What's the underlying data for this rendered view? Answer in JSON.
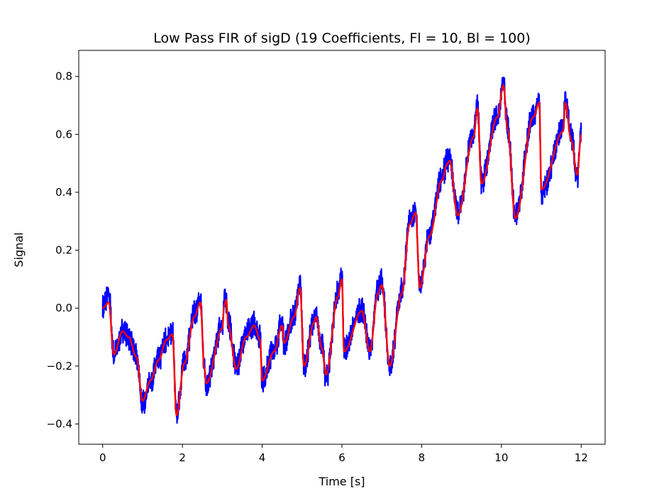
{
  "chart_data": {
    "type": "line",
    "title": "Low Pass FIR of sigD (19 Coefficients, Fl = 10, Bl = 100)",
    "xlabel": "Time [s]",
    "ylabel": "Signal",
    "xlim": [
      -0.6,
      12.6
    ],
    "ylim": [
      -0.47,
      0.89
    ],
    "xticks": [
      0,
      2,
      4,
      6,
      8,
      10,
      12
    ],
    "xtick_labels": [
      "0",
      "2",
      "4",
      "6",
      "8",
      "10",
      "12"
    ],
    "yticks": [
      -0.4,
      -0.2,
      0.0,
      0.2,
      0.4,
      0.6,
      0.8
    ],
    "ytick_labels": [
      "−0.4",
      "−0.2",
      "0.0",
      "0.2",
      "0.4",
      "0.6",
      "0.8"
    ],
    "grid": false,
    "series": [
      {
        "color": "#0000ff",
        "noise_amplitude": 0.03,
        "x": [
          0,
          0.15,
          0.28,
          0.5,
          0.65,
          0.85,
          1.0,
          1.2,
          1.4,
          1.6,
          1.75,
          1.85,
          2.05,
          2.3,
          2.45,
          2.55,
          2.6,
          3.0,
          3.05,
          3.1,
          3.15,
          3.35,
          3.6,
          3.8,
          3.95,
          4.0,
          4.3,
          4.5,
          4.55,
          4.8,
          4.95,
          5.05,
          5.3,
          5.35,
          5.5,
          5.6,
          5.9,
          6.0,
          6.05,
          6.5,
          6.7,
          6.9,
          7.0,
          7.2,
          7.5,
          7.7,
          7.85,
          7.95,
          8.2,
          8.5,
          8.65,
          8.7,
          8.9,
          9.3,
          9.4,
          9.5,
          9.9,
          10.05,
          10.15,
          10.35,
          10.8,
          10.95,
          11.0,
          11.55,
          11.6,
          11.75,
          11.9,
          12.0
        ],
        "values": [
          0.0,
          0.05,
          -0.16,
          -0.08,
          -0.1,
          -0.17,
          -0.33,
          -0.25,
          -0.18,
          -0.11,
          -0.08,
          -0.37,
          -0.18,
          -0.02,
          0.03,
          -0.2,
          -0.26,
          -0.06,
          0.02,
          0.03,
          -0.05,
          -0.2,
          -0.09,
          -0.05,
          -0.1,
          -0.25,
          -0.14,
          -0.05,
          -0.12,
          -0.02,
          0.08,
          -0.2,
          -0.04,
          -0.03,
          -0.13,
          -0.24,
          0.05,
          0.11,
          -0.14,
          0.0,
          -0.15,
          0.06,
          0.09,
          -0.2,
          0.06,
          0.3,
          0.34,
          0.07,
          0.26,
          0.45,
          0.51,
          0.52,
          0.33,
          0.6,
          0.7,
          0.44,
          0.67,
          0.78,
          0.63,
          0.32,
          0.67,
          0.72,
          0.4,
          0.62,
          0.72,
          0.59,
          0.45,
          0.61
        ]
      },
      {
        "color": "#ff0000",
        "x": [
          0,
          0.15,
          0.28,
          0.5,
          0.65,
          0.85,
          1.0,
          1.2,
          1.4,
          1.6,
          1.75,
          1.85,
          2.05,
          2.3,
          2.45,
          2.55,
          2.6,
          3.0,
          3.05,
          3.1,
          3.15,
          3.35,
          3.6,
          3.8,
          3.95,
          4.0,
          4.3,
          4.5,
          4.55,
          4.8,
          4.95,
          5.05,
          5.3,
          5.35,
          5.5,
          5.6,
          5.9,
          6.0,
          6.05,
          6.5,
          6.7,
          6.9,
          7.0,
          7.2,
          7.5,
          7.7,
          7.85,
          7.95,
          8.2,
          8.5,
          8.65,
          8.7,
          8.9,
          9.3,
          9.4,
          9.5,
          9.9,
          10.05,
          10.15,
          10.35,
          10.8,
          10.95,
          11.0,
          11.55,
          11.6,
          11.75,
          11.9,
          12.0
        ],
        "values": [
          0.0,
          0.02,
          -0.16,
          -0.08,
          -0.1,
          -0.17,
          -0.32,
          -0.25,
          -0.18,
          -0.11,
          -0.09,
          -0.37,
          -0.19,
          -0.03,
          0.02,
          -0.21,
          -0.26,
          -0.07,
          0.01,
          0.03,
          -0.06,
          -0.21,
          -0.1,
          -0.06,
          -0.11,
          -0.25,
          -0.15,
          -0.06,
          -0.12,
          -0.03,
          0.07,
          -0.2,
          -0.05,
          -0.03,
          -0.14,
          -0.23,
          0.04,
          0.1,
          -0.15,
          -0.01,
          -0.15,
          0.05,
          0.08,
          -0.2,
          0.05,
          0.29,
          0.33,
          0.07,
          0.25,
          0.44,
          0.5,
          0.51,
          0.32,
          0.59,
          0.69,
          0.43,
          0.66,
          0.77,
          0.62,
          0.31,
          0.66,
          0.71,
          0.41,
          0.61,
          0.71,
          0.58,
          0.46,
          0.6
        ]
      }
    ]
  }
}
